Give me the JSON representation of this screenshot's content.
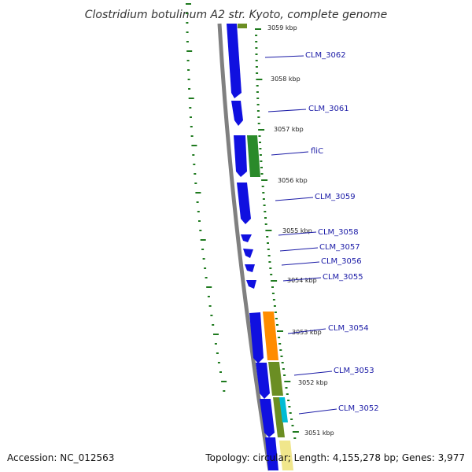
{
  "title": "Clostridium botulinum A2 str. Kyoto, complete genome",
  "accession": "Accession: NC_012563",
  "summary": "Topology: circular; Length: 4,155,278 bp; Genes: 3,977",
  "ticks": [
    "3059 kbp",
    "3058 kbp",
    "3057 kbp",
    "3056 kbp",
    "3055 kbp",
    "3054 kbp",
    "3053 kbp",
    "3052 kbp",
    "3051 kbp"
  ],
  "genes": [
    "CLM_3062",
    "CLM_3061",
    "fliC",
    "CLM_3059",
    "CLM_3058",
    "CLM_3057",
    "CLM_3056",
    "CLM_3055",
    "CLM_3054",
    "CLM_3053",
    "CLM_3052"
  ],
  "colors": {
    "cds": "#1010e0",
    "backbone": "#808080",
    "ticks": "#1f7a1f",
    "label_line": "#1a1aa6",
    "green_feature": "#2a8a2a",
    "orange_feature": "#ff8c00",
    "olive_feature": "#6b8e23",
    "cyan_feature": "#00bcd4",
    "yellow_feature": "#f0e68c"
  }
}
